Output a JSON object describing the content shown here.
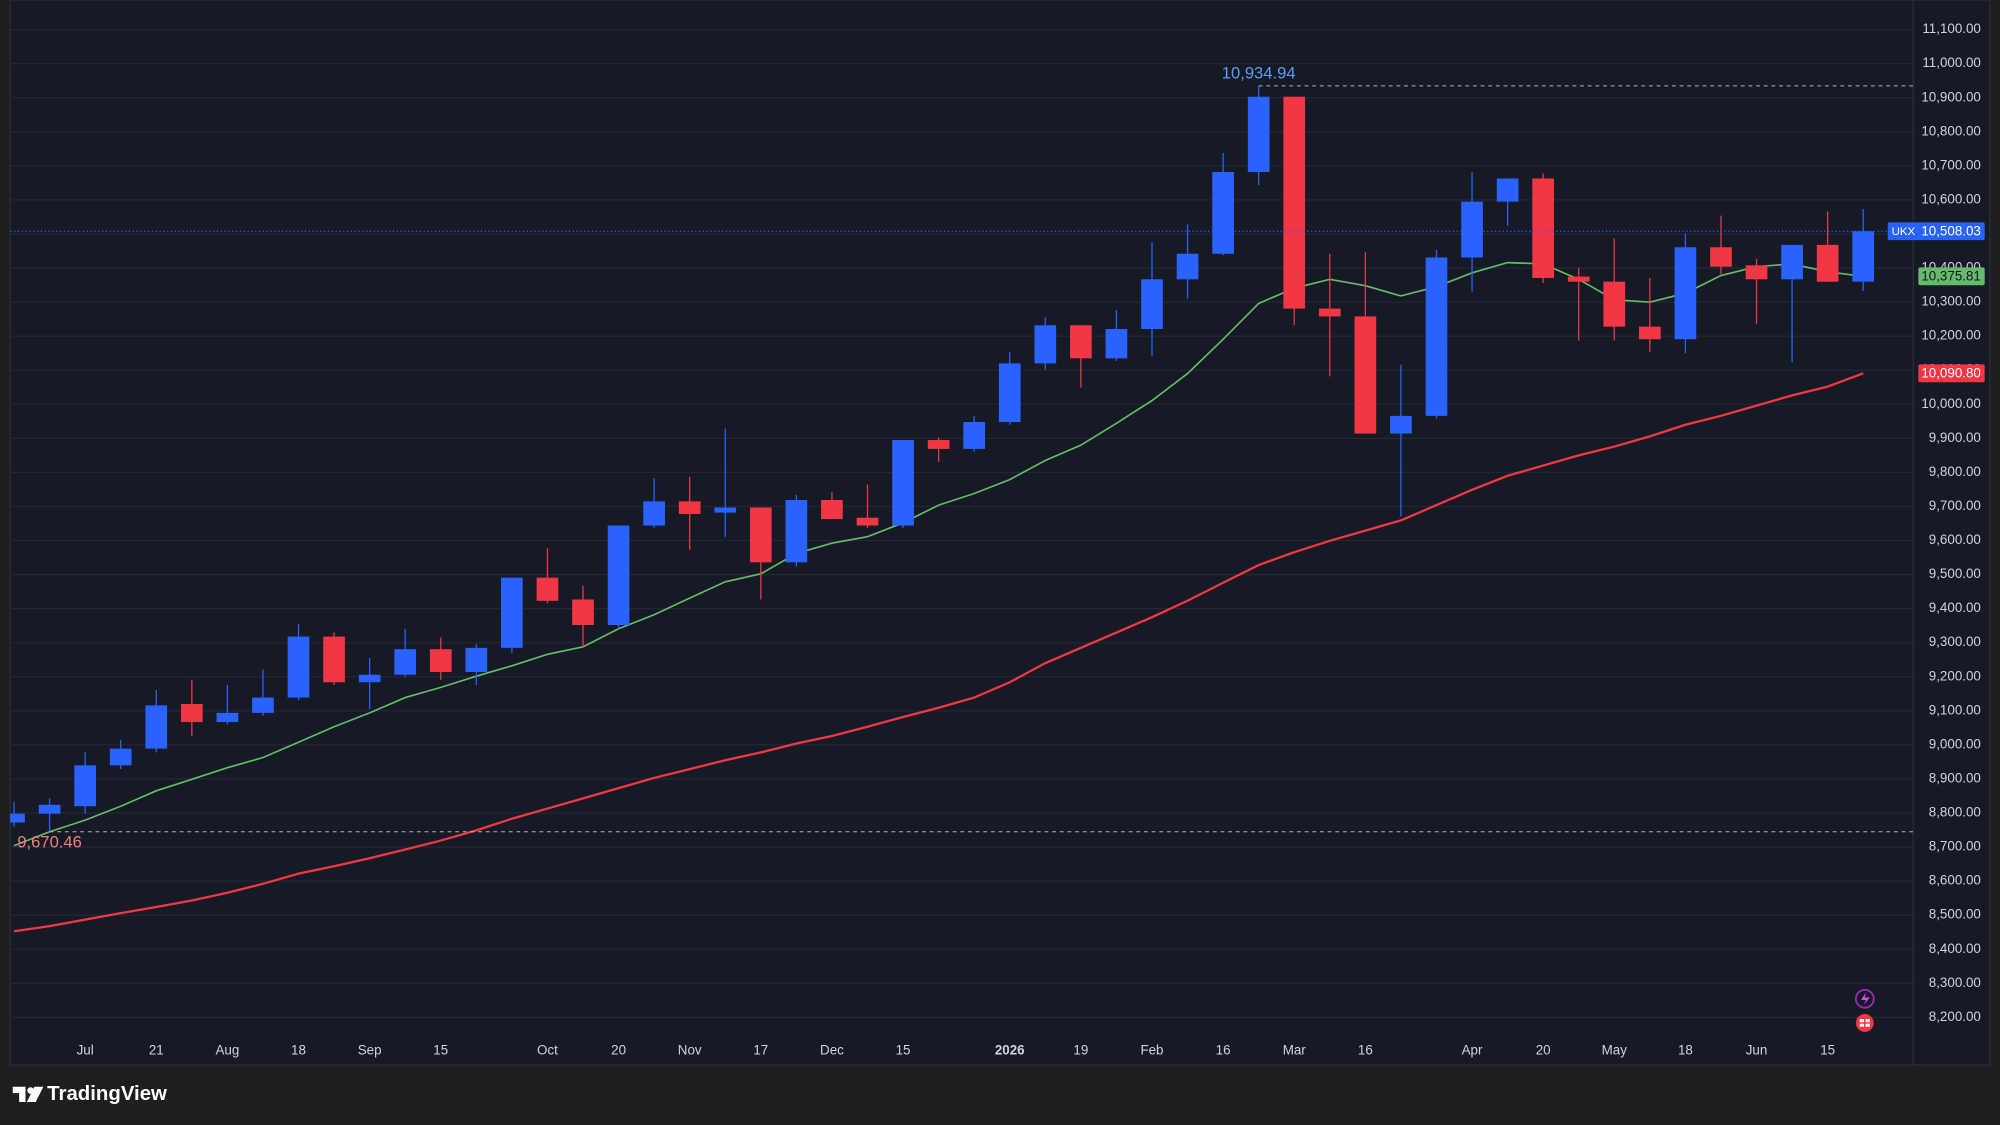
{
  "chart_data": {
    "type": "candlestick",
    "symbol": "UKX",
    "branding": "TradingView",
    "categories": [
      null,
      null,
      "Jul",
      null,
      "21",
      null,
      "Aug",
      null,
      "18",
      null,
      "Sep",
      null,
      "15",
      null,
      null,
      "Oct",
      null,
      "20",
      null,
      "Nov",
      null,
      "17",
      null,
      "Dec",
      null,
      "15",
      null,
      null,
      "2026",
      null,
      "19",
      null,
      "Feb",
      null,
      "16",
      null,
      "Mar",
      null,
      "16",
      null,
      null,
      "Apr",
      null,
      "20",
      null,
      "May",
      null,
      "18",
      null,
      "Jun",
      null,
      "15",
      null
    ],
    "open": [
      8772,
      8798,
      8820,
      8940,
      8989,
      9120,
      9067,
      9094,
      9139,
      9318,
      9184,
      9206,
      9281,
      9214,
      9285,
      9491,
      9427,
      9352,
      9644,
      9715,
      9682,
      9697,
      9536,
      9719,
      9667,
      9644,
      9895,
      9869,
      9948,
      10120,
      10232,
      10135,
      10221,
      10367,
      10442,
      10682,
      10903,
      10281,
      10258,
      9914,
      9966,
      10431,
      10595,
      10663,
      10375,
      10360,
      10228,
      10191,
      10461,
      10408,
      10367,
      10468,
      10360
    ],
    "high": [
      8832,
      8843,
      8978,
      9015,
      9161,
      9191,
      9176,
      9221,
      9356,
      9330,
      9255,
      9341,
      9315,
      9296,
      9491,
      9577,
      9468,
      9644,
      9783,
      9787,
      9929,
      9697,
      9734,
      9742,
      9764,
      9895,
      9903,
      9966,
      10154,
      10255,
      10232,
      10277,
      10476,
      10528,
      10738,
      10934.94,
      10903,
      10442,
      10446,
      10116,
      10453,
      10682,
      10663,
      10678,
      10401,
      10487,
      10371,
      10502,
      10554,
      10427,
      10468,
      10566,
      10573
    ],
    "low": [
      8760,
      8745,
      8798,
      8929,
      8978,
      9026,
      9060,
      9086,
      9131,
      9176,
      9105,
      9199,
      9191,
      9176,
      9270,
      9416,
      9285,
      9341,
      9637,
      9573,
      9611,
      9427,
      9524,
      9663,
      9637,
      9637,
      9831,
      9861,
      9940,
      10101,
      10049,
      10127,
      10142,
      10311,
      10438,
      10644,
      10232,
      10082,
      9914,
      9670.46,
      9959,
      10330,
      10524,
      10356,
      10187,
      10187,
      10154,
      10150,
      10382,
      10236,
      10124,
      10360,
      10333
    ],
    "close": [
      8798,
      8824,
      8940,
      8989,
      9116,
      9067,
      9094,
      9139,
      9318,
      9184,
      9206,
      9281,
      9214,
      9285,
      9491,
      9423,
      9352,
      9644,
      9715,
      9678,
      9697,
      9536,
      9719,
      9663,
      9644,
      9895,
      9869,
      9948,
      10120,
      10232,
      10135,
      10221,
      10367,
      10442,
      10682,
      10903,
      10281,
      10258,
      9914,
      9966,
      10431,
      10595,
      10663,
      10371,
      10360,
      10228,
      10191,
      10461,
      10404,
      10367,
      10468,
      10360,
      10508.03
    ],
    "last_close_label": "10,508.03",
    "high_label": "10,934.94",
    "low_label": "9,670.46",
    "up_color": "#2962ff",
    "down_color": "#f23645",
    "series": [
      {
        "color": "#66bb6a",
        "last_value_label": "10,375.81",
        "values": [
          8704,
          8745,
          8779,
          8820,
          8865,
          8899,
          8933,
          8963,
          9008,
          9053,
          9094,
          9139,
          9169,
          9202,
          9232,
          9266,
          9288,
          9341,
          9382,
          9431,
          9479,
          9502,
          9562,
          9592,
          9611,
          9652,
          9704,
          9738,
          9779,
          9835,
          9880,
          9944,
          10011,
          10090,
          10191,
          10296,
          10341,
          10367,
          10348,
          10318,
          10345,
          10386,
          10416,
          10412,
          10367,
          10307,
          10300,
          10326,
          10378,
          10404,
          10412,
          10389,
          10375.81
        ]
      },
      {
        "color": "#f23645",
        "last_value_label": "10,090.80",
        "values": [
          8453,
          8468,
          8487,
          8506,
          8524,
          8543,
          8566,
          8592,
          8622,
          8644,
          8667,
          8693,
          8719,
          8749,
          8783,
          8813,
          8843,
          8873,
          8903,
          8929,
          8955,
          8978,
          9004,
          9026,
          9053,
          9082,
          9109,
          9139,
          9184,
          9240,
          9285,
          9330,
          9375,
          9423,
          9476,
          9528,
          9566,
          9599,
          9629,
          9659,
          9704,
          9749,
          9790,
          9820,
          9850,
          9876,
          9906,
          9940,
          9966,
          9996,
          10026,
          10052,
          10090.8
        ]
      }
    ],
    "ylim": [
      8060,
      11187
    ],
    "yticks": [
      {
        "value": 8200,
        "label": "8,200.00"
      },
      {
        "value": 8300,
        "label": "8,300.00"
      },
      {
        "value": 8400,
        "label": "8,400.00"
      },
      {
        "value": 8500,
        "label": "8,500.00"
      },
      {
        "value": 8600,
        "label": "8,600.00"
      },
      {
        "value": 8700,
        "label": "8,700.00"
      },
      {
        "value": 8800,
        "label": "8,800.00"
      },
      {
        "value": 8900,
        "label": "8,900.00"
      },
      {
        "value": 9000,
        "label": "9,000.00"
      },
      {
        "value": 9100,
        "label": "9,100.00"
      },
      {
        "value": 9200,
        "label": "9,200.00"
      },
      {
        "value": 9300,
        "label": "9,300.00"
      },
      {
        "value": 9400,
        "label": "9,400.00"
      },
      {
        "value": 9500,
        "label": "9,500.00"
      },
      {
        "value": 9600,
        "label": "9,600.00"
      },
      {
        "value": 9700,
        "label": "9,700.00"
      },
      {
        "value": 9800,
        "label": "9,800.00"
      },
      {
        "value": 9900,
        "label": "9,900.00"
      },
      {
        "value": 10000,
        "label": "10,000.00"
      },
      {
        "value": 10100,
        "label": "10,100.00"
      },
      {
        "value": 10200,
        "label": "10,200.00"
      },
      {
        "value": 10300,
        "label": "10,300.00"
      },
      {
        "value": 10400,
        "label": "10,400.00"
      },
      {
        "value": 10500,
        "label": "10,500.00"
      },
      {
        "value": 10600,
        "label": "10,600.00"
      },
      {
        "value": 10700,
        "label": "10,700.00"
      },
      {
        "value": 10800,
        "label": "10,800.00"
      },
      {
        "value": 10900,
        "label": "10,900.00"
      },
      {
        "value": 11000,
        "label": "11,000.00"
      },
      {
        "value": 11100,
        "label": "11,100.00"
      }
    ],
    "grid": true
  }
}
